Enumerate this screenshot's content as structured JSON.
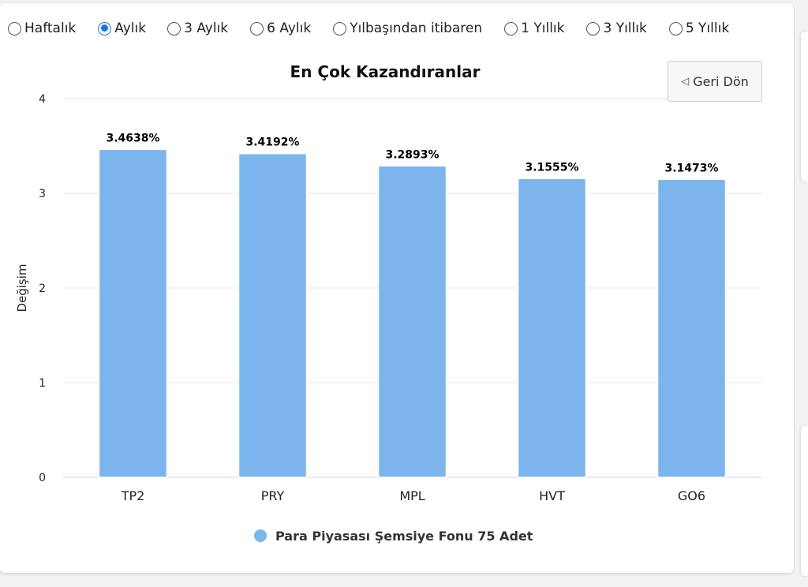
{
  "periods": [
    {
      "label": "Haftalık",
      "checked": false
    },
    {
      "label": "Aylık",
      "checked": true
    },
    {
      "label": "3 Aylık",
      "checked": false
    },
    {
      "label": "6 Aylık",
      "checked": false
    },
    {
      "label": "Yılbaşından itibaren",
      "checked": false
    },
    {
      "label": "1 Yıllık",
      "checked": false
    },
    {
      "label": "3 Yıllık",
      "checked": false
    },
    {
      "label": "5 Yıllık",
      "checked": false
    }
  ],
  "back_button": {
    "label": "Geri Dön",
    "icon": "back-triangle-icon"
  },
  "colors": {
    "bar": "#7cb5ec",
    "grid": "#e6e6e6",
    "radio_checked": "#1a73e8"
  },
  "chart_data": {
    "type": "bar",
    "title": "En Çok Kazandıranlar",
    "ylabel": "Değişim",
    "xlabel": "",
    "categories": [
      "TP2",
      "PRY",
      "MPL",
      "HVT",
      "GO6"
    ],
    "series": [
      {
        "name": "Para Piyasası Şemsiye Fonu 75 Adet",
        "values": [
          3.4638,
          3.4192,
          3.2893,
          3.1555,
          3.1473
        ]
      }
    ],
    "data_labels": [
      "3.4638%",
      "3.4192%",
      "3.2893%",
      "3.1555%",
      "3.1473%"
    ],
    "ylim": [
      0,
      4
    ],
    "yticks": [
      0,
      1,
      2,
      3,
      4
    ],
    "grid": true,
    "legend_position": "bottom"
  }
}
